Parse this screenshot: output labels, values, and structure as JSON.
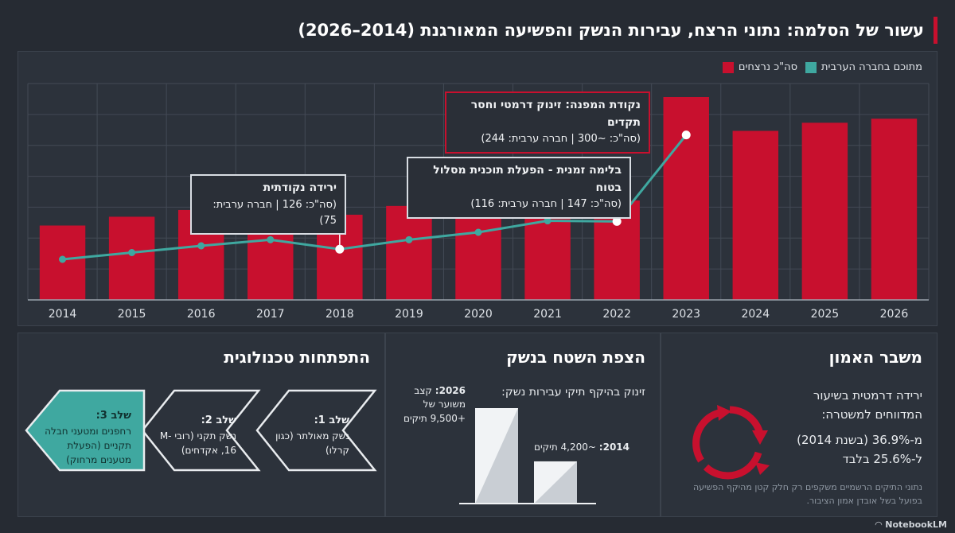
{
  "header": {
    "title": "עשור של הסלמה: נתוני הרצח, עבירות הנשק והפשיעה המאורגנת (2014–2026)"
  },
  "legend": {
    "total": "סה\"כ נרצחים",
    "arab": "מתוכם בחברה הערבית"
  },
  "colors": {
    "red": "#c8102e",
    "teal": "#3fa8a0",
    "background": "#262b33"
  },
  "chart_data": {
    "type": "bar",
    "categories": [
      "2014",
      "2015",
      "2016",
      "2017",
      "2018",
      "2019",
      "2020",
      "2021",
      "2022",
      "2023",
      "2024",
      "2025",
      "2026"
    ],
    "series": [
      {
        "name": "סה\"כ נרצחים",
        "type": "bar",
        "values": [
          110,
          123,
          133,
          148,
          126,
          139,
          162,
          180,
          147,
          300,
          250,
          262,
          268
        ]
      },
      {
        "name": "מתוכם בחברה הערבית",
        "type": "line",
        "values": [
          60,
          70,
          80,
          89,
          75,
          89,
          100,
          117,
          116,
          244,
          null,
          null,
          null
        ]
      }
    ],
    "ylim": [
      0,
      320
    ],
    "grid": true,
    "legend_position": "top-right"
  },
  "callouts": {
    "turning": {
      "title": "נקודת המפנה: זינוק דרמטי וחסר תקדים",
      "text": "(סה\"כ: ~300 | חברה ערבית: 244)"
    },
    "brake": {
      "title": "בלימה זמנית - הפעלת תוכנית מסלול בטוח",
      "text": "(סה\"כ: 147 | חברה ערבית: 116)"
    },
    "drop": {
      "title": "ירידה נקודתית",
      "text": "(סה\"כ: 126 | חברה ערבית: 75)"
    }
  },
  "trust": {
    "title": "משבר האמון",
    "line1": "ירידה דרמטית בשיעור המדווחים למשטרה:",
    "line2": "מ-36.9% (בשנת 2014) ל-25.6% בלבד",
    "note": "נתוני התיקים הרשמיים משקפים רק חלק קטן מהיקף הפשיעה בפועל בשל אובדן אמון הציבור."
  },
  "weapons": {
    "title": "הצפת השטח בנשק",
    "subtitle": "זינוק בהיקף תיקי עבירות נשק:",
    "y2026_year": "2026:",
    "y2026_text": "קצב משוער של +9,500 תיקים",
    "y2014_year": "2014:",
    "y2014_text": "~4,200 תיקים",
    "values": {
      "2014": 4200,
      "2026": 9500
    }
  },
  "tech": {
    "title": "התפתחות טכנולוגית",
    "stage1": {
      "label": "שלב 1:",
      "text": "נשק מאולתר (כגון קרלו)"
    },
    "stage2": {
      "label": "שלב 2:",
      "text": "נשק תקני (רובי M-16, אקדחים)"
    },
    "stage3": {
      "label": "שלב 3:",
      "text": "רחפנים ומטעני חבלה תקניים (הפעלת מטענים מרחוק)"
    }
  },
  "footer": {
    "brand": "NotebookLM"
  }
}
